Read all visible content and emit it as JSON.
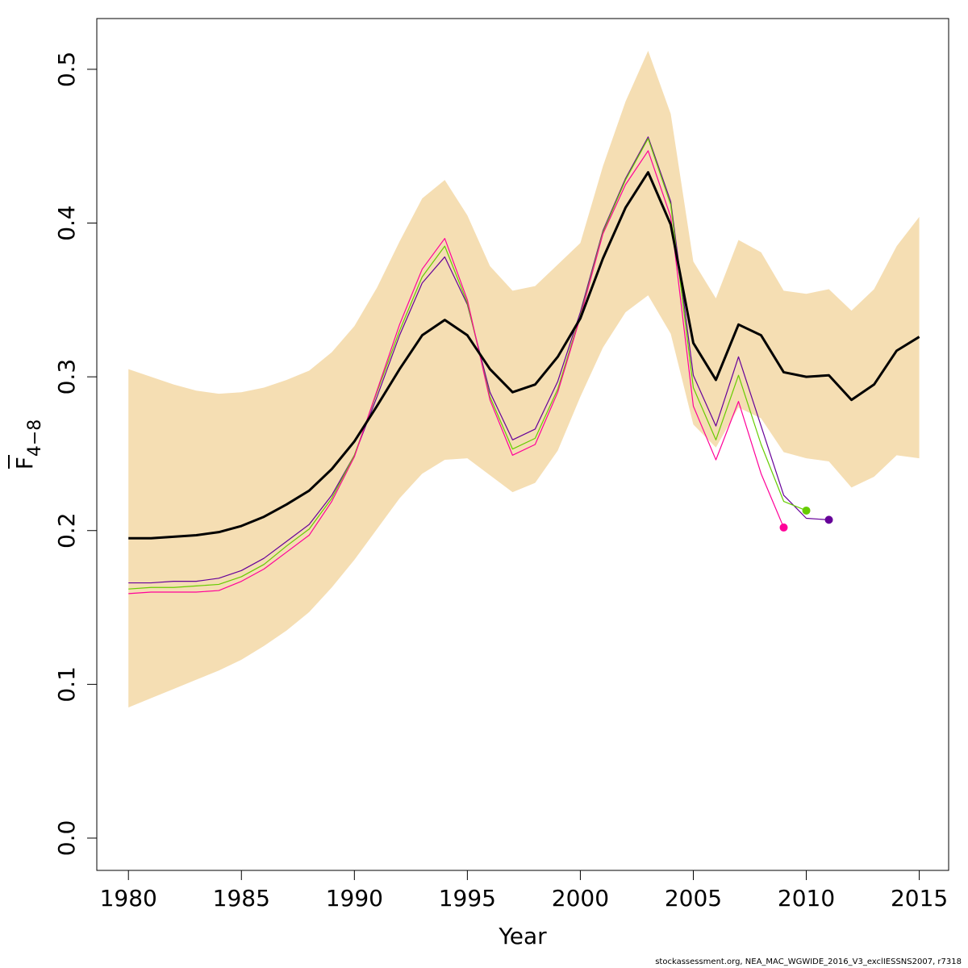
{
  "chart_data": {
    "type": "line",
    "title": "",
    "xlabel": "Year",
    "ylabel": {
      "main": "F",
      "subscript": "4−8"
    },
    "xlim": [
      1978.6,
      2016.3
    ],
    "ylim": [
      -0.021,
      0.533
    ],
    "xticks": [
      1980,
      1985,
      1990,
      1995,
      2000,
      2005,
      2010,
      2015
    ],
    "yticks": [
      0.0,
      0.1,
      0.2,
      0.3,
      0.4,
      0.5
    ],
    "ytick_labels": [
      "0.0",
      "0.1",
      "0.2",
      "0.3",
      "0.4",
      "0.5"
    ],
    "grid": false,
    "legend": "none",
    "band": {
      "color": "#F5DEB3",
      "x": [
        1980,
        1981,
        1982,
        1983,
        1984,
        1985,
        1986,
        1987,
        1988,
        1989,
        1990,
        1991,
        1992,
        1993,
        1994,
        1995,
        1996,
        1997,
        1998,
        1999,
        2000,
        2001,
        2002,
        2003,
        2004,
        2005,
        2006,
        2007,
        2008,
        2009,
        2010,
        2011,
        2012,
        2013,
        2014,
        2015
      ],
      "upper": [
        0.305,
        0.3,
        0.295,
        0.291,
        0.289,
        0.29,
        0.293,
        0.298,
        0.304,
        0.316,
        0.333,
        0.358,
        0.388,
        0.416,
        0.428,
        0.405,
        0.372,
        0.356,
        0.359,
        0.373,
        0.387,
        0.437,
        0.479,
        0.512,
        0.471,
        0.375,
        0.351,
        0.389,
        0.381,
        0.356,
        0.354,
        0.357,
        0.343,
        0.357,
        0.385,
        0.404
      ],
      "lower": [
        0.085,
        0.091,
        0.097,
        0.103,
        0.109,
        0.116,
        0.125,
        0.135,
        0.147,
        0.163,
        0.181,
        0.201,
        0.221,
        0.237,
        0.246,
        0.247,
        0.236,
        0.225,
        0.231,
        0.252,
        0.287,
        0.319,
        0.342,
        0.353,
        0.328,
        0.269,
        0.254,
        0.28,
        0.273,
        0.251,
        0.247,
        0.245,
        0.228,
        0.235,
        0.249,
        0.247
      ]
    },
    "series": [
      {
        "color": "#000000",
        "width": 3,
        "x": [
          1980,
          1981,
          1982,
          1983,
          1984,
          1985,
          1986,
          1987,
          1988,
          1989,
          1990,
          1991,
          1992,
          1993,
          1994,
          1995,
          1996,
          1997,
          1998,
          1999,
          2000,
          2001,
          2002,
          2003,
          2004,
          2005,
          2006,
          2007,
          2008,
          2009,
          2010,
          2011,
          2012,
          2013,
          2014,
          2015
        ],
        "values": [
          0.195,
          0.195,
          0.196,
          0.197,
          0.199,
          0.203,
          0.209,
          0.217,
          0.226,
          0.24,
          0.258,
          0.281,
          0.305,
          0.327,
          0.337,
          0.327,
          0.305,
          0.29,
          0.295,
          0.313,
          0.338,
          0.377,
          0.41,
          0.433,
          0.399,
          0.322,
          0.298,
          0.334,
          0.327,
          0.303,
          0.3,
          0.301,
          0.285,
          0.295,
          0.317,
          0.326
        ],
        "end_marker": false
      },
      {
        "color": "#660099",
        "width": 1.2,
        "x": [
          1980,
          1981,
          1982,
          1983,
          1984,
          1985,
          1986,
          1987,
          1988,
          1989,
          1990,
          1991,
          1992,
          1993,
          1994,
          1995,
          1996,
          1997,
          1998,
          1999,
          2000,
          2001,
          2002,
          2003,
          2004,
          2005,
          2006,
          2007,
          2008,
          2009,
          2010,
          2011
        ],
        "values": [
          0.166,
          0.166,
          0.167,
          0.167,
          0.169,
          0.174,
          0.182,
          0.193,
          0.204,
          0.223,
          0.249,
          0.287,
          0.327,
          0.361,
          0.378,
          0.347,
          0.29,
          0.259,
          0.266,
          0.297,
          0.342,
          0.395,
          0.429,
          0.456,
          0.414,
          0.301,
          0.268,
          0.313,
          0.268,
          0.223,
          0.208,
          0.207
        ],
        "end_marker": true
      },
      {
        "color": "#66CC00",
        "width": 1.2,
        "x": [
          1980,
          1981,
          1982,
          1983,
          1984,
          1985,
          1986,
          1987,
          1988,
          1989,
          1990,
          1991,
          1992,
          1993,
          1994,
          1995,
          1996,
          1997,
          1998,
          1999,
          2000,
          2001,
          2002,
          2003,
          2004,
          2005,
          2006,
          2007,
          2008,
          2009,
          2010
        ],
        "values": [
          0.162,
          0.163,
          0.163,
          0.164,
          0.165,
          0.17,
          0.178,
          0.19,
          0.201,
          0.221,
          0.249,
          0.29,
          0.33,
          0.365,
          0.385,
          0.348,
          0.287,
          0.253,
          0.26,
          0.292,
          0.34,
          0.394,
          0.428,
          0.455,
          0.412,
          0.293,
          0.259,
          0.301,
          0.256,
          0.219,
          0.213
        ],
        "end_marker": true
      },
      {
        "color": "#FF0099",
        "width": 1.2,
        "x": [
          1980,
          1981,
          1982,
          1983,
          1984,
          1985,
          1986,
          1987,
          1988,
          1989,
          1990,
          1991,
          1992,
          1993,
          1994,
          1995,
          1996,
          1997,
          1998,
          1999,
          2000,
          2001,
          2002,
          2003,
          2004,
          2005,
          2006,
          2007,
          2008,
          2009
        ],
        "values": [
          0.159,
          0.16,
          0.16,
          0.16,
          0.161,
          0.167,
          0.175,
          0.186,
          0.197,
          0.219,
          0.248,
          0.291,
          0.334,
          0.37,
          0.39,
          0.35,
          0.285,
          0.249,
          0.256,
          0.29,
          0.339,
          0.393,
          0.425,
          0.447,
          0.404,
          0.281,
          0.246,
          0.284,
          0.237,
          0.202
        ],
        "end_marker": true
      }
    ]
  },
  "footer_text": "stockassessment.org, NEA_MAC_WGWIDE_2016_V3_exclIESSNS2007, r7318"
}
